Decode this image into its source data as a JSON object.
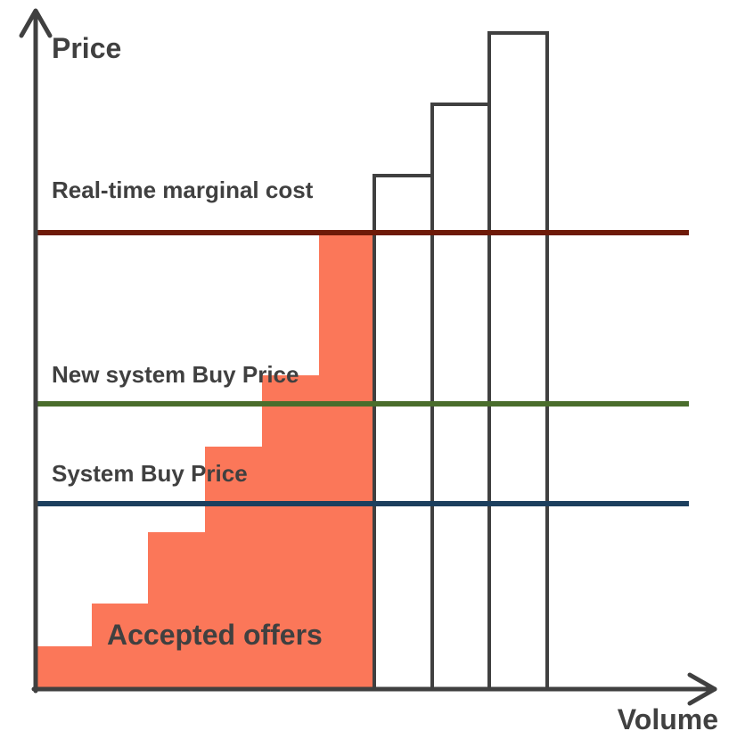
{
  "axes": {
    "y_label": "Price",
    "x_label": "Volume"
  },
  "lines": [
    {
      "label": "Real-time marginal cost"
    },
    {
      "label": "New system Buy Price"
    },
    {
      "label": "System Buy Price"
    }
  ],
  "area_label": "Accepted offers"
}
